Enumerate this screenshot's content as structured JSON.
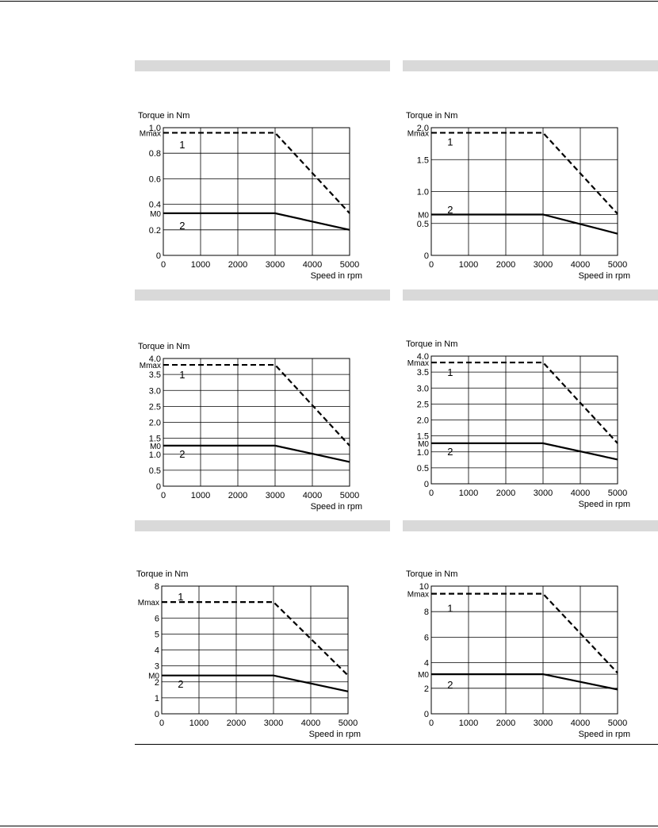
{
  "page": {
    "band_color": "#d9d9d9",
    "line_color": "#000000"
  },
  "chart_data": [
    {
      "type": "line",
      "ylabel": "Torque in Nm",
      "xlabel": "Speed in rpm",
      "xlim": [
        0,
        5000
      ],
      "ylim": [
        0,
        1.0
      ],
      "x_ticks": [
        "0",
        "1000",
        "2000",
        "3000",
        "4000",
        "5000"
      ],
      "y_ticks": [
        {
          "v": 0,
          "label": "0"
        },
        {
          "v": 0.2,
          "label": "0.2"
        },
        {
          "v": 0.4,
          "label": "0.4"
        },
        {
          "v": 0.6,
          "label": "0.6"
        },
        {
          "v": 0.8,
          "label": "0.8"
        },
        {
          "v": 1.0,
          "label": "1.0"
        }
      ],
      "grid": true,
      "ref_labels": [
        {
          "label": "Mmax",
          "v": 0.96
        },
        {
          "label": "M0",
          "v": 0.33
        }
      ],
      "series": [
        {
          "label": "1",
          "style": "dashed",
          "x": [
            0,
            3000,
            5000
          ],
          "y": [
            0.96,
            0.96,
            0.33
          ],
          "label_pos": [
            430,
            0.87
          ]
        },
        {
          "label": "2",
          "style": "solid",
          "x": [
            0,
            3000,
            5000
          ],
          "y": [
            0.33,
            0.33,
            0.2
          ],
          "label_pos": [
            430,
            0.235
          ]
        }
      ]
    },
    {
      "type": "line",
      "ylabel": "Torque in Nm",
      "xlabel": "Speed in rpm",
      "xlim": [
        0,
        5000
      ],
      "ylim": [
        0,
        2.0
      ],
      "x_ticks": [
        "0",
        "1000",
        "2000",
        "3000",
        "4000",
        "5000"
      ],
      "y_ticks": [
        {
          "v": 0,
          "label": "0"
        },
        {
          "v": 0.5,
          "label": "0.5"
        },
        {
          "v": 1.0,
          "label": "1.0"
        },
        {
          "v": 1.5,
          "label": "1.5"
        },
        {
          "v": 2.0,
          "label": "2.0"
        }
      ],
      "grid": true,
      "extra_gridlines": [
        0.64
      ],
      "ref_labels": [
        {
          "label": "Mmax",
          "v": 1.92
        },
        {
          "label": "M0",
          "v": 0.64
        }
      ],
      "series": [
        {
          "label": "1",
          "style": "dashed",
          "x": [
            0,
            3000,
            5000
          ],
          "y": [
            1.92,
            1.92,
            0.65
          ],
          "label_pos": [
            430,
            1.78
          ]
        },
        {
          "label": "2",
          "style": "solid",
          "x": [
            0,
            3000,
            5000
          ],
          "y": [
            0.64,
            0.64,
            0.34
          ],
          "label_pos": [
            430,
            0.72
          ]
        }
      ]
    },
    {
      "type": "line",
      "ylabel": "Torque in Nm",
      "xlabel": "Speed in rpm",
      "xlim": [
        0,
        5000
      ],
      "ylim": [
        0,
        4.0
      ],
      "x_ticks": [
        "0",
        "1000",
        "2000",
        "3000",
        "4000",
        "5000"
      ],
      "y_ticks": [
        {
          "v": 0,
          "label": "0"
        },
        {
          "v": 0.5,
          "label": "0.5"
        },
        {
          "v": 1.0,
          "label": "1.0"
        },
        {
          "v": 1.5,
          "label": "1.5"
        },
        {
          "v": 2.0,
          "label": "2.0"
        },
        {
          "v": 2.5,
          "label": "2.5"
        },
        {
          "v": 3.0,
          "label": "3.0"
        },
        {
          "v": 3.5,
          "label": "3.5"
        },
        {
          "v": 4.0,
          "label": "4.0"
        }
      ],
      "grid": true,
      "ref_labels": [
        {
          "label": "Mmax",
          "v": 3.8
        },
        {
          "label": "M0",
          "v": 1.27
        }
      ],
      "series": [
        {
          "label": "1",
          "style": "dashed",
          "x": [
            0,
            3000,
            5000
          ],
          "y": [
            3.8,
            3.8,
            1.27
          ],
          "label_pos": [
            430,
            3.5
          ]
        },
        {
          "label": "2",
          "style": "solid",
          "x": [
            0,
            3000,
            5000
          ],
          "y": [
            1.27,
            1.27,
            0.76
          ],
          "label_pos": [
            430,
            1.02
          ]
        }
      ]
    },
    {
      "type": "line",
      "ylabel": "Torque in Nm",
      "xlabel": "Speed in rpm",
      "xlim": [
        0,
        5000
      ],
      "ylim": [
        0,
        4.0
      ],
      "x_ticks": [
        "0",
        "1000",
        "2000",
        "3000",
        "4000",
        "5000"
      ],
      "y_ticks": [
        {
          "v": 0,
          "label": "0"
        },
        {
          "v": 0.5,
          "label": "0.5"
        },
        {
          "v": 1.0,
          "label": "1.0"
        },
        {
          "v": 1.5,
          "label": "1.5"
        },
        {
          "v": 2.0,
          "label": "2.0"
        },
        {
          "v": 2.5,
          "label": "2.5"
        },
        {
          "v": 3.0,
          "label": "3.0"
        },
        {
          "v": 3.5,
          "label": "3.5"
        },
        {
          "v": 4.0,
          "label": "4.0"
        }
      ],
      "grid": true,
      "ref_labels": [
        {
          "label": "Mmax",
          "v": 3.8
        },
        {
          "label": "M0",
          "v": 1.27
        }
      ],
      "series": [
        {
          "label": "1",
          "style": "dashed",
          "x": [
            0,
            3000,
            5000
          ],
          "y": [
            3.8,
            3.8,
            1.27
          ],
          "label_pos": [
            430,
            3.5
          ]
        },
        {
          "label": "2",
          "style": "solid",
          "x": [
            0,
            3000,
            5000
          ],
          "y": [
            1.27,
            1.27,
            0.76
          ],
          "label_pos": [
            430,
            1.02
          ]
        }
      ]
    },
    {
      "type": "line",
      "ylabel": "Torque in Nm",
      "xlabel": "Speed in rpm",
      "xlim": [
        0,
        5000
      ],
      "ylim": [
        0,
        8
      ],
      "x_ticks": [
        "0",
        "1000",
        "2000",
        "3000",
        "4000",
        "5000"
      ],
      "y_ticks": [
        {
          "v": 0,
          "label": "0"
        },
        {
          "v": 1,
          "label": "1"
        },
        {
          "v": 2,
          "label": "2"
        },
        {
          "v": 3,
          "label": "3"
        },
        {
          "v": 4,
          "label": "4"
        },
        {
          "v": 5,
          "label": "5"
        },
        {
          "v": 6,
          "label": "6"
        },
        {
          "v": 8,
          "label": "8"
        }
      ],
      "grid": true,
      "ref_labels": [
        {
          "label": "Mmax",
          "v": 7.0
        },
        {
          "label": "M0",
          "v": 2.4
        }
      ],
      "series": [
        {
          "label": "1",
          "style": "dashed",
          "x": [
            0,
            3000,
            5000
          ],
          "y": [
            7.0,
            7.0,
            2.4
          ],
          "label_pos": [
            430,
            7.35
          ]
        },
        {
          "label": "2",
          "style": "solid",
          "x": [
            0,
            3000,
            5000
          ],
          "y": [
            2.4,
            2.4,
            1.4
          ],
          "label_pos": [
            430,
            1.9
          ]
        }
      ]
    },
    {
      "type": "line",
      "ylabel": "Torque in Nm",
      "xlabel": "Speed in rpm",
      "xlim": [
        0,
        5000
      ],
      "ylim": [
        0,
        10
      ],
      "x_ticks": [
        "0",
        "1000",
        "2000",
        "3000",
        "4000",
        "5000"
      ],
      "y_ticks": [
        {
          "v": 0,
          "label": "0"
        },
        {
          "v": 2,
          "label": "2"
        },
        {
          "v": 4,
          "label": "4"
        },
        {
          "v": 6,
          "label": "6"
        },
        {
          "v": 8,
          "label": "8"
        },
        {
          "v": 10,
          "label": "10"
        }
      ],
      "grid": true,
      "extra_gridlines": [
        3.1
      ],
      "ref_labels": [
        {
          "label": "Mmax",
          "v": 9.4
        },
        {
          "label": "M0",
          "v": 3.1
        }
      ],
      "series": [
        {
          "label": "1",
          "style": "dashed",
          "x": [
            0,
            3000,
            5000
          ],
          "y": [
            9.4,
            9.4,
            3.2
          ],
          "label_pos": [
            430,
            8.3
          ]
        },
        {
          "label": "2",
          "style": "solid",
          "x": [
            0,
            3000,
            5000
          ],
          "y": [
            3.1,
            3.1,
            1.9
          ],
          "label_pos": [
            430,
            2.3
          ]
        }
      ]
    }
  ]
}
